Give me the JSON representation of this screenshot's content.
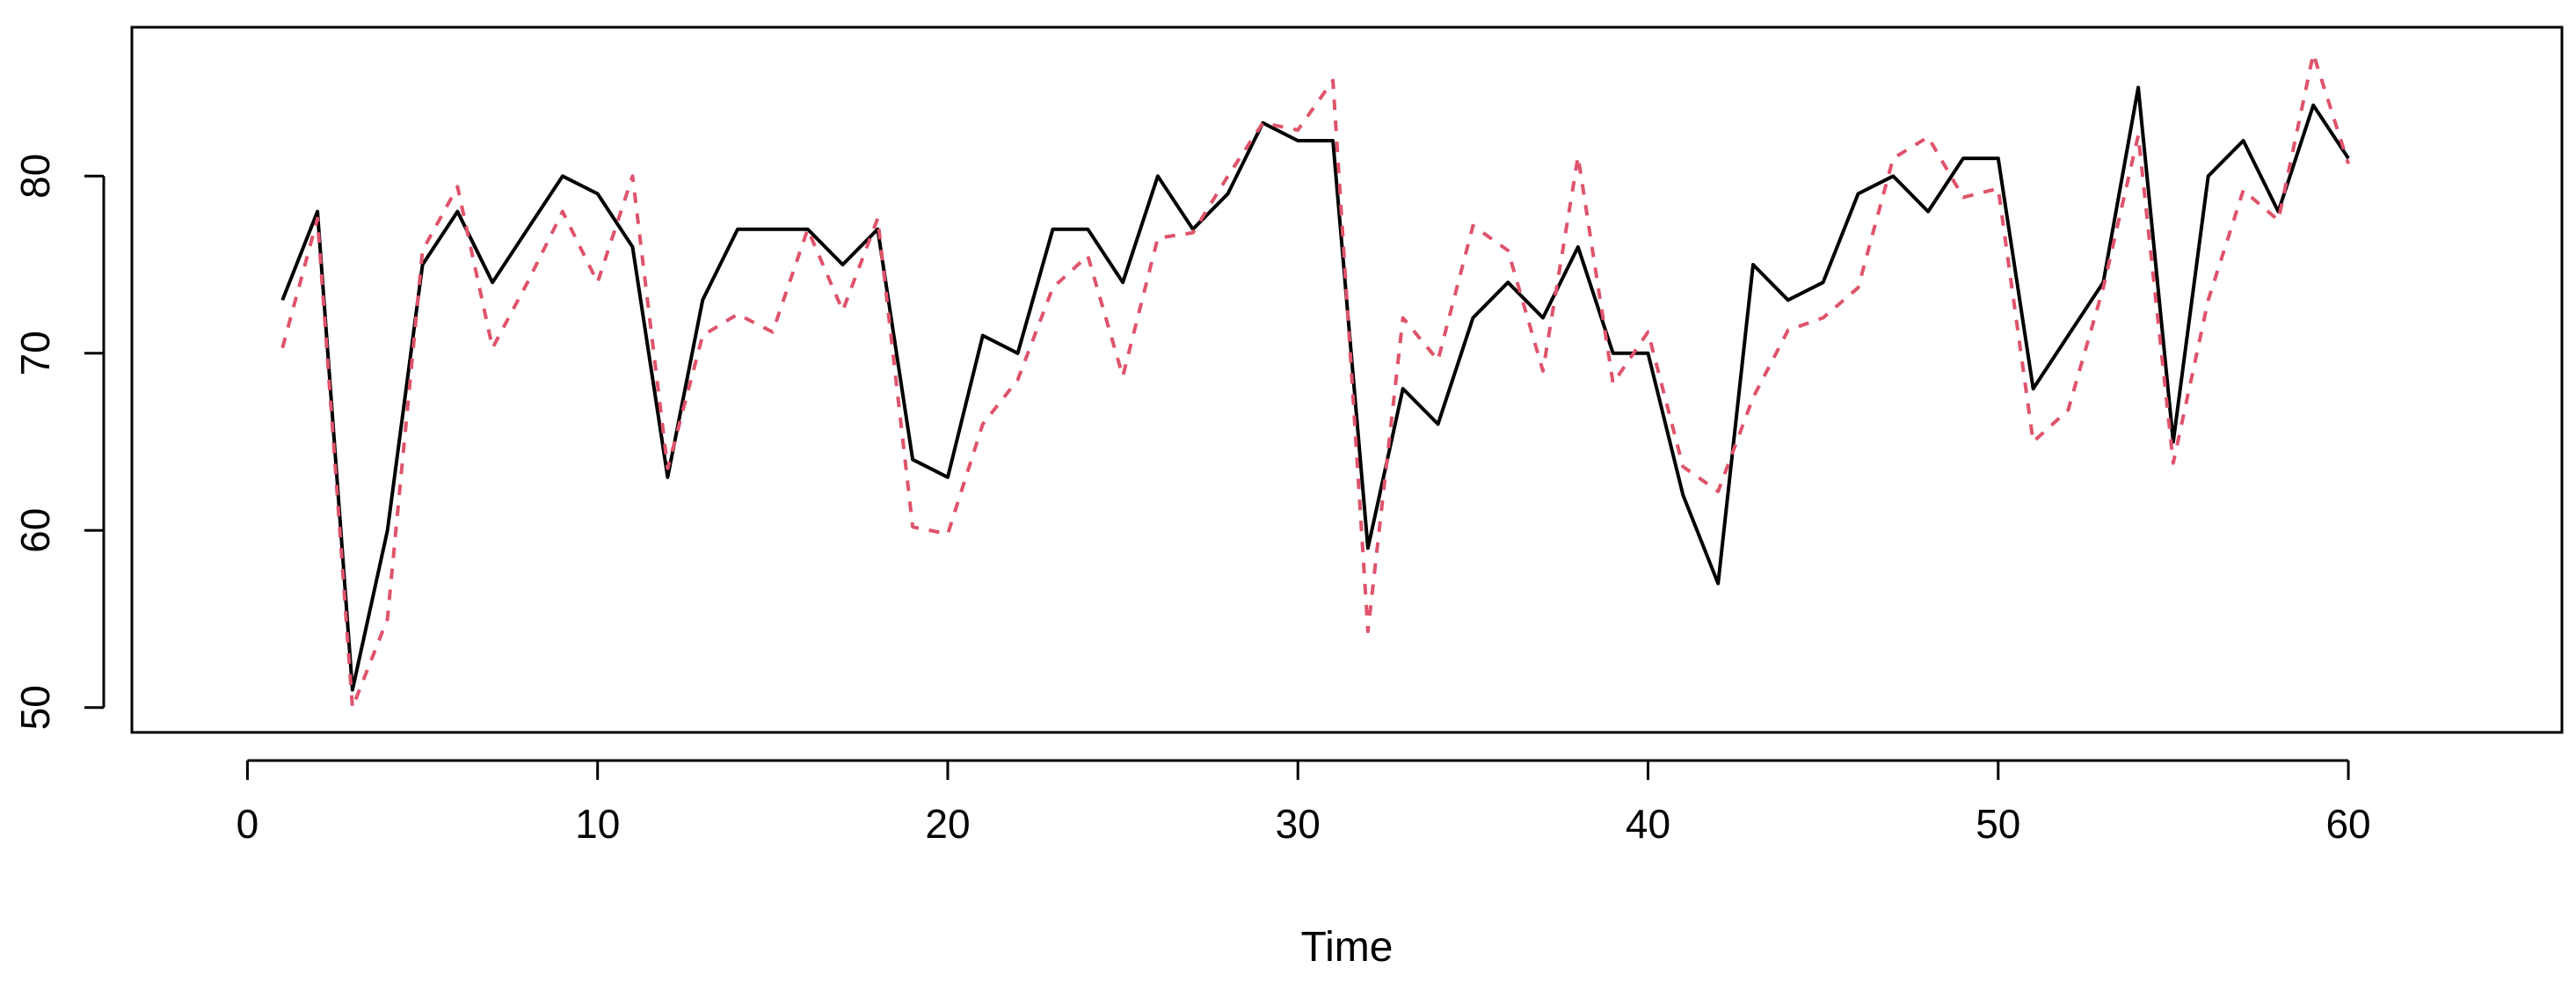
{
  "chart_data": {
    "type": "line",
    "title": "",
    "xlabel": "Time",
    "ylabel": "",
    "xlim": [
      -3.3,
      66.1
    ],
    "ylim": [
      48.6,
      88.4
    ],
    "xticks": [
      0,
      10,
      20,
      30,
      40,
      50,
      60
    ],
    "yticks": [
      50,
      60,
      70,
      80
    ],
    "grid": false,
    "legend": "none",
    "series": [
      {
        "color": "#000000",
        "dash": "solid",
        "x": [
          1,
          2,
          3,
          4,
          5,
          6,
          7,
          8,
          9,
          10,
          11,
          12,
          13,
          14,
          15,
          16,
          17,
          18,
          19,
          20,
          21,
          22,
          23,
          24,
          25,
          26,
          27,
          28,
          29,
          30,
          31,
          32,
          33,
          34,
          35,
          36,
          37,
          38,
          39,
          40,
          41,
          42,
          43,
          44,
          45,
          46,
          47,
          48,
          49,
          50,
          51,
          52,
          53,
          54,
          55,
          56,
          57,
          58,
          59,
          60
        ],
        "values": [
          73,
          78,
          51,
          60,
          75,
          78,
          74,
          77,
          80,
          79,
          76,
          63,
          73,
          77,
          77,
          77,
          75,
          77,
          64,
          63,
          71,
          70,
          77,
          77,
          74,
          80,
          77,
          79,
          83,
          82,
          82,
          59,
          68,
          66,
          72,
          74,
          72,
          76,
          70,
          70,
          62,
          57,
          75,
          73,
          74,
          79,
          80,
          78,
          81,
          81,
          68,
          71,
          74,
          85,
          65,
          80,
          82,
          78,
          84,
          81
        ]
      },
      {
        "color": "#DF536B",
        "dash": "dashed",
        "x": [
          1,
          2,
          3,
          4,
          5,
          6,
          7,
          8,
          9,
          10,
          11,
          12,
          13,
          14,
          15,
          16,
          17,
          18,
          19,
          20,
          21,
          22,
          23,
          24,
          25,
          26,
          27,
          28,
          29,
          30,
          31,
          32,
          33,
          34,
          35,
          36,
          37,
          38,
          39,
          40,
          41,
          42,
          43,
          44,
          45,
          46,
          47,
          48,
          49,
          50,
          51,
          52,
          53,
          54,
          55,
          56,
          57,
          58,
          59,
          60
        ],
        "values": [
          70.3,
          77.6,
          50.0,
          55.0,
          75.8,
          79.4,
          70.3,
          74.0,
          78.0,
          74.0,
          80.0,
          63.5,
          71.0,
          72.2,
          71.2,
          77.0,
          72.4,
          77.6,
          60.2,
          59.8,
          66.0,
          68.5,
          73.7,
          75.5,
          68.7,
          76.5,
          76.8,
          80.0,
          83.0,
          82.6,
          85.4,
          54.3,
          72.0,
          69.6,
          77.2,
          75.8,
          69.0,
          81.1,
          68.3,
          71.2,
          63.6,
          62.2,
          67.5,
          71.3,
          72.0,
          73.7,
          81.0,
          82.2,
          78.8,
          79.3,
          65.0,
          66.8,
          73.7,
          82.3,
          63.8,
          73.0,
          79.2,
          77.5,
          86.9,
          80.7
        ]
      }
    ]
  }
}
